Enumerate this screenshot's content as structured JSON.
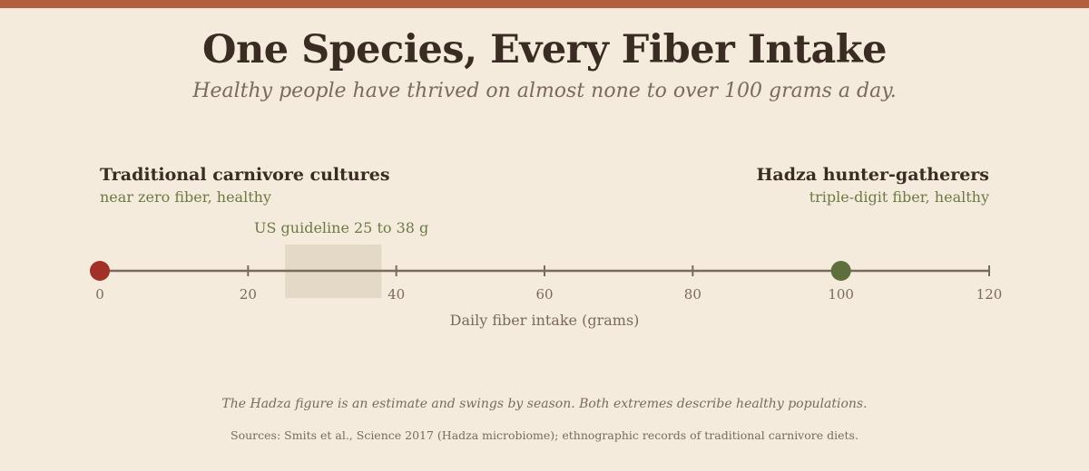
{
  "header": {
    "title": "One Species, Every Fiber Intake",
    "subtitle": "Healthy people have thrived on almost none to over 100 grams a day."
  },
  "colors": {
    "accent_bar": "#b35e3c",
    "carnivore_point": "#a03028",
    "hadza_point": "#5e6e3c",
    "axis": "#7a6a5e",
    "band": "#e4d8c6"
  },
  "chart_data": {
    "type": "scatter",
    "title": "One Species, Every Fiber Intake",
    "subtitle": "Healthy people have thrived on almost none to over 100 grams a day.",
    "xlabel": "Daily fiber intake (grams)",
    "ylabel": "",
    "xlim": [
      0,
      120
    ],
    "xticks": [
      0,
      20,
      40,
      60,
      80,
      100,
      120
    ],
    "xtick_labels": [
      "0",
      "20",
      "40",
      "60",
      "80",
      "100",
      "120"
    ],
    "grid": false,
    "points": [
      {
        "x": 0,
        "name": "Traditional carnivore cultures",
        "description": "near zero fiber, healthy",
        "color": "#a03028"
      },
      {
        "x": 100,
        "name": "Hadza hunter-gatherers",
        "description": "triple-digit fiber, healthy",
        "color": "#5e6e3c"
      }
    ],
    "bands": [
      {
        "from": 25,
        "to": 38,
        "label": "US guideline 25 to 38 g"
      }
    ]
  },
  "footer": {
    "note": "The Hadza figure is an estimate and swings by season. Both extremes describe healthy populations.",
    "sources": "Sources: Smits et al., Science 2017 (Hadza microbiome); ethnographic records of traditional carnivore diets."
  }
}
